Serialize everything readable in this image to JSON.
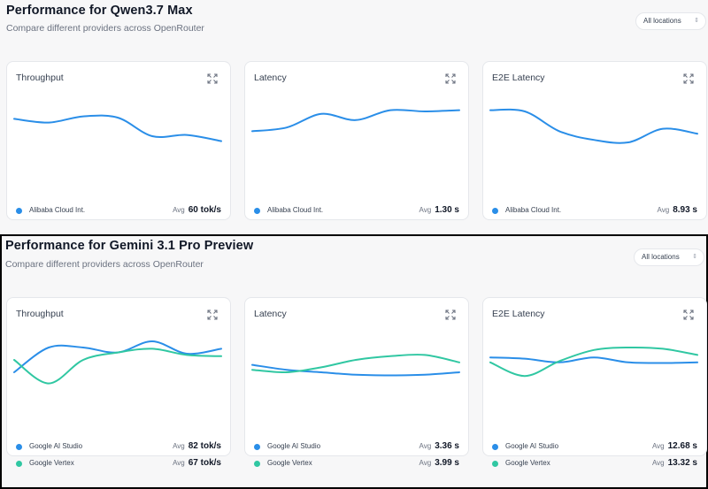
{
  "colors": {
    "blue": "#2a8ee8",
    "teal": "#30c7a2"
  },
  "sections": [
    {
      "title": "Performance for Qwen3.7 Max",
      "subtitle": "Compare different providers across OpenRouter",
      "location_select": "All locations",
      "cards": [
        {
          "title": "Throughput",
          "legend": [
            {
              "provider": "Alibaba Cloud Int.",
              "avg_label": "Avg",
              "avg_value": "60 tok/s",
              "color": "#2a8ee8"
            }
          ],
          "chart_data": {
            "type": "line",
            "xlabel": "",
            "ylabel": "",
            "ylim": [
              0,
              100
            ],
            "series": [
              {
                "color": "#2a8ee8",
                "values": [
                  68,
                  62,
                  72,
                  70,
                  40,
                  42,
                  32
                ]
              }
            ]
          }
        },
        {
          "title": "Latency",
          "legend": [
            {
              "provider": "Alibaba Cloud Int.",
              "avg_label": "Avg",
              "avg_value": "1.30 s",
              "color": "#2a8ee8"
            }
          ],
          "chart_data": {
            "type": "line",
            "xlabel": "",
            "ylabel": "",
            "ylim": [
              0,
              100
            ],
            "series": [
              {
                "color": "#2a8ee8",
                "values": [
                  48,
                  54,
                  76,
                  66,
                  82,
                  80,
                  82
                ]
              }
            ]
          }
        },
        {
          "title": "E2E Latency",
          "legend": [
            {
              "provider": "Alibaba Cloud Int.",
              "avg_label": "Avg",
              "avg_value": "8.93 s",
              "color": "#2a8ee8"
            }
          ],
          "chart_data": {
            "type": "line",
            "xlabel": "",
            "ylabel": "",
            "ylim": [
              0,
              100
            ],
            "series": [
              {
                "color": "#2a8ee8",
                "values": [
                  82,
                  80,
                  48,
                  34,
                  30,
                  52,
                  44
                ]
              }
            ]
          }
        }
      ]
    },
    {
      "title": "Performance for Gemini 3.1 Pro Preview",
      "subtitle": "Compare different providers across OpenRouter",
      "location_select": "All locations",
      "cards": [
        {
          "title": "Throughput",
          "legend": [
            {
              "provider": "Google AI Studio",
              "avg_label": "Avg",
              "avg_value": "82 tok/s",
              "color": "#2a8ee8"
            },
            {
              "provider": "Google Vertex",
              "avg_label": "Avg",
              "avg_value": "67 tok/s",
              "color": "#30c7a2"
            }
          ],
          "chart_data": {
            "type": "line",
            "xlabel": "",
            "ylabel": "",
            "ylim": [
              0,
              100
            ],
            "series": [
              {
                "color": "#2a8ee8",
                "values": [
                  40,
                  80,
                  80,
                  72,
                  90,
                  70,
                  78
                ]
              },
              {
                "color": "#30c7a2",
                "values": [
                  60,
                  22,
                  60,
                  72,
                  78,
                  68,
                  66
                ]
              }
            ]
          }
        },
        {
          "title": "Latency",
          "legend": [
            {
              "provider": "Google AI Studio",
              "avg_label": "Avg",
              "avg_value": "3.36 s",
              "color": "#2a8ee8"
            },
            {
              "provider": "Google Vertex",
              "avg_label": "Avg",
              "avg_value": "3.99 s",
              "color": "#30c7a2"
            }
          ],
          "chart_data": {
            "type": "line",
            "xlabel": "",
            "ylabel": "",
            "ylim": [
              0,
              100
            ],
            "series": [
              {
                "color": "#2a8ee8",
                "values": [
                  52,
                  44,
                  40,
                  36,
                  35,
                  36,
                  40
                ]
              },
              {
                "color": "#30c7a2",
                "values": [
                  44,
                  40,
                  48,
                  60,
                  66,
                  68,
                  56
                ]
              }
            ]
          }
        },
        {
          "title": "E2E Latency",
          "legend": [
            {
              "provider": "Google AI Studio",
              "avg_label": "Avg",
              "avg_value": "12.68 s",
              "color": "#2a8ee8"
            },
            {
              "provider": "Google Vertex",
              "avg_label": "Avg",
              "avg_value": "13.32 s",
              "color": "#30c7a2"
            }
          ],
          "chart_data": {
            "type": "line",
            "xlabel": "",
            "ylabel": "",
            "ylim": [
              0,
              100
            ],
            "series": [
              {
                "color": "#2a8ee8",
                "values": [
                  64,
                  62,
                  56,
                  64,
                  56,
                  55,
                  56
                ]
              },
              {
                "color": "#30c7a2",
                "values": [
                  56,
                  34,
                  58,
                  76,
                  80,
                  78,
                  68
                ]
              }
            ]
          }
        }
      ]
    }
  ]
}
